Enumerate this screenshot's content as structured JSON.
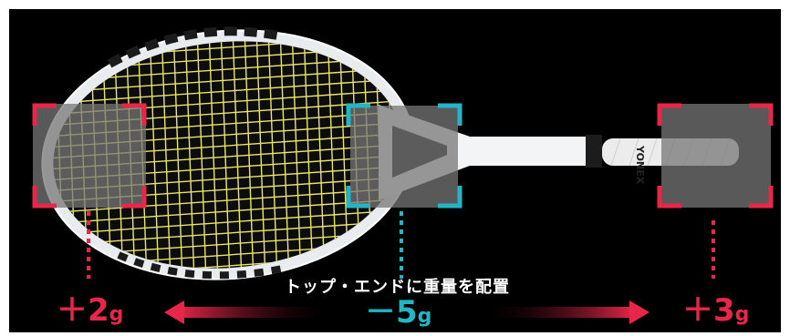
{
  "caption": "トップ・エンドに重量を配置",
  "top_weight": {
    "sign": "＋",
    "value": "2",
    "unit": "g"
  },
  "mid_weight": {
    "sign": "－",
    "value": "5",
    "unit": "g"
  },
  "end_weight": {
    "sign": "＋",
    "value": "3",
    "unit": "g"
  },
  "racket_brand": "YONEX",
  "colors": {
    "accent_red": "#e8264a",
    "accent_cyan": "#22b5c6",
    "string": "#e9e56a",
    "frame": "#f2f4f6"
  },
  "icons": [
    "racket-image",
    "top-marker-frame",
    "mid-marker-frame",
    "end-marker-frame",
    "left-arrow-icon",
    "right-arrow-icon"
  ]
}
